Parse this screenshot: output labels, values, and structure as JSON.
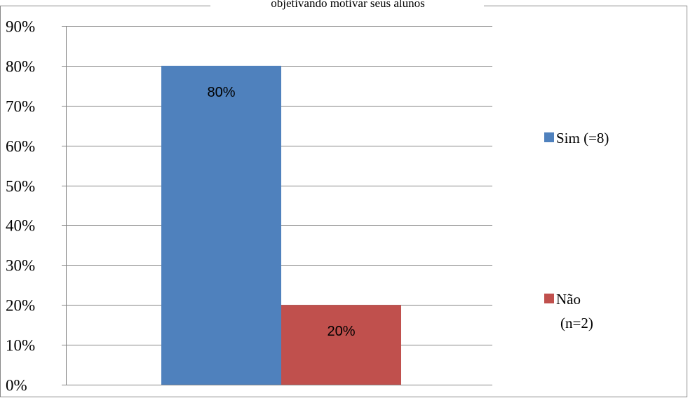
{
  "chart_data": {
    "type": "bar",
    "title": "objetivando motivar seus alunos",
    "categories": [
      ""
    ],
    "series": [
      {
        "name": "Sim (=8)",
        "legend_lines": [
          "Sim (=8)"
        ],
        "values": [
          0.8
        ],
        "data_label": "80%",
        "color": "#4F81BD"
      },
      {
        "name": "Não (n=2)",
        "legend_lines": [
          "Não",
          "(n=2)"
        ],
        "values": [
          0.2
        ],
        "data_label": "20%",
        "color": "#C0504D"
      }
    ],
    "ylim": [
      0,
      0.9
    ],
    "yticks": [
      0,
      0.1,
      0.2,
      0.3,
      0.4,
      0.5,
      0.6,
      0.7,
      0.8,
      0.9
    ],
    "ytick_labels": [
      "0%",
      "10%",
      "20%",
      "30%",
      "40%",
      "50%",
      "60%",
      "70%",
      "80%",
      "90%"
    ],
    "grid": true,
    "legend_position": "right",
    "xlabel": "",
    "ylabel": ""
  }
}
